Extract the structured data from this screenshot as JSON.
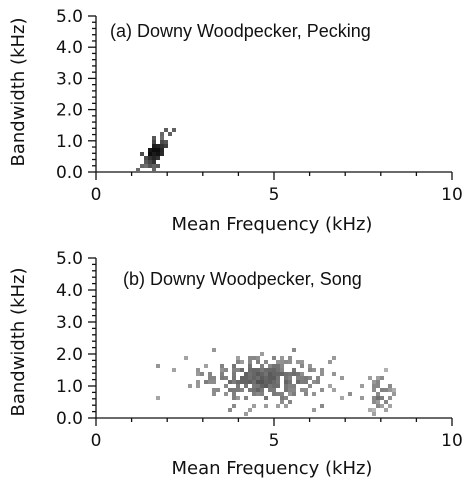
{
  "chart_data": [
    {
      "type": "heatmap",
      "title": "(a) Downy Woodpecker, Pecking",
      "xlabel": "Mean Frequency (kHz)",
      "ylabel": "Bandwidth (kHz)",
      "xlim": [
        0,
        10
      ],
      "ylim": [
        0,
        5
      ],
      "x_ticks": [
        "0",
        "5",
        "10"
      ],
      "y_ticks": [
        "0.0",
        "1.0",
        "2.0",
        "3.0",
        "4.0",
        "5.0"
      ],
      "grid": false,
      "clusters": [
        {
          "x_center": 1.6,
          "y_center": 0.7,
          "x_spread": 0.22,
          "y_spread": 0.22,
          "density": "high",
          "points": 70
        }
      ]
    },
    {
      "type": "heatmap",
      "title": "(b) Downy Woodpecker, Song",
      "xlabel": "Mean Frequency (kHz)",
      "ylabel": "Bandwidth (kHz)",
      "xlim": [
        0,
        10
      ],
      "ylim": [
        0,
        5
      ],
      "x_ticks": [
        "0",
        "5",
        "10"
      ],
      "y_ticks": [
        "0.0",
        "1.0",
        "2.0",
        "3.0",
        "4.0",
        "5.0"
      ],
      "grid": false,
      "clusters": [
        {
          "x_center": 4.6,
          "y_center": 1.25,
          "x_spread": 0.85,
          "y_spread": 0.35,
          "density": "medium",
          "points": 320
        },
        {
          "x_center": 7.9,
          "y_center": 0.9,
          "x_spread": 0.25,
          "y_spread": 0.3,
          "density": "low",
          "points": 40
        }
      ]
    }
  ]
}
